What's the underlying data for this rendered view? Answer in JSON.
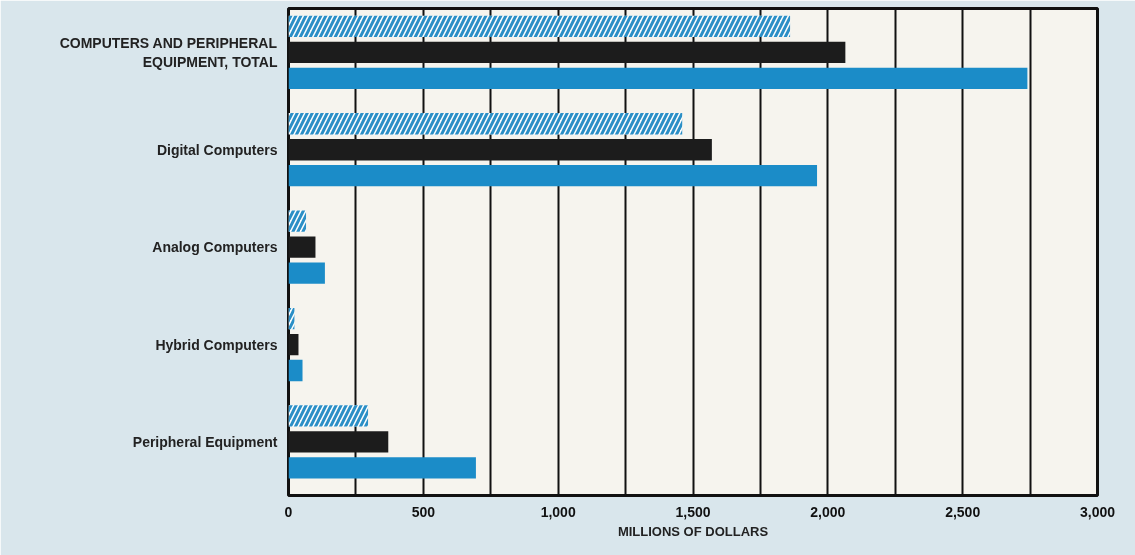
{
  "chart_data": {
    "type": "bar",
    "orientation": "horizontal",
    "xlabel": "MILLIONS OF DOLLARS",
    "categories": [
      "COMPUTERS AND PERIPHERAL\nEQUIPMENT, TOTAL",
      "Digital Computers",
      "Analog Computers",
      "Hybrid Computers",
      "Peripheral Equipment"
    ],
    "series": [
      {
        "color": "#2b8fc6",
        "values": [
          1860,
          1460,
          65,
          22,
          295
        ]
      },
      {
        "color": "#1c1c1c",
        "values": [
          2065,
          1570,
          100,
          37,
          370
        ]
      },
      {
        "color": "#1b8cc8",
        "values": [
          2740,
          1960,
          135,
          52,
          695
        ]
      }
    ],
    "xlim": [
      0,
      3000
    ],
    "xticks": [
      0,
      500,
      {
        "value": 250,
        "label": null
      },
      {
        "value": 750,
        "label": null
      },
      {
        "value": 1000,
        "label": "1,000"
      },
      {
        "value": 1250,
        "label": null
      },
      {
        "value": 1500,
        "label": "1,500"
      },
      {
        "value": 1750,
        "label": null
      },
      {
        "value": 2000,
        "label": "2,000"
      },
      {
        "value": 2250,
        "label": null
      },
      {
        "value": 2500,
        "label": "2,500"
      },
      {
        "value": 2750,
        "label": null
      },
      {
        "value": 3000,
        "label": "3,000"
      }
    ],
    "grid": "x"
  }
}
